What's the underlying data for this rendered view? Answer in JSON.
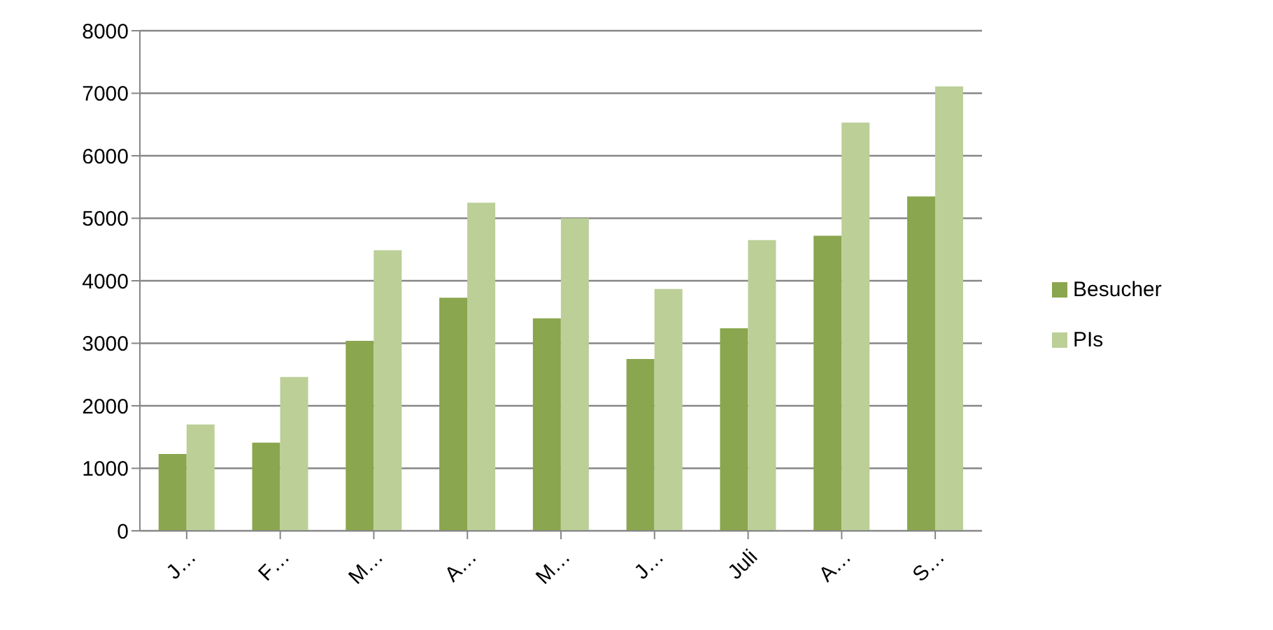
{
  "chart_data": {
    "type": "bar",
    "categories": [
      "J…",
      "F…",
      "M…",
      "A…",
      "M…",
      "J…",
      "Juli",
      "A…",
      "S…"
    ],
    "series": [
      {
        "name": "Besucher",
        "color": "#8aa64e",
        "values": [
          1230,
          1410,
          3040,
          3730,
          3400,
          2750,
          3240,
          4720,
          5350
        ]
      },
      {
        "name": "PIs",
        "color": "#bbcf97",
        "values": [
          1700,
          2460,
          4490,
          5250,
          5000,
          3870,
          4650,
          6530,
          7110
        ]
      }
    ],
    "ylim": [
      0,
      8000
    ],
    "yticks": [
      0,
      1000,
      2000,
      3000,
      4000,
      5000,
      6000,
      7000,
      8000
    ],
    "grid": "y",
    "legend": "right"
  }
}
